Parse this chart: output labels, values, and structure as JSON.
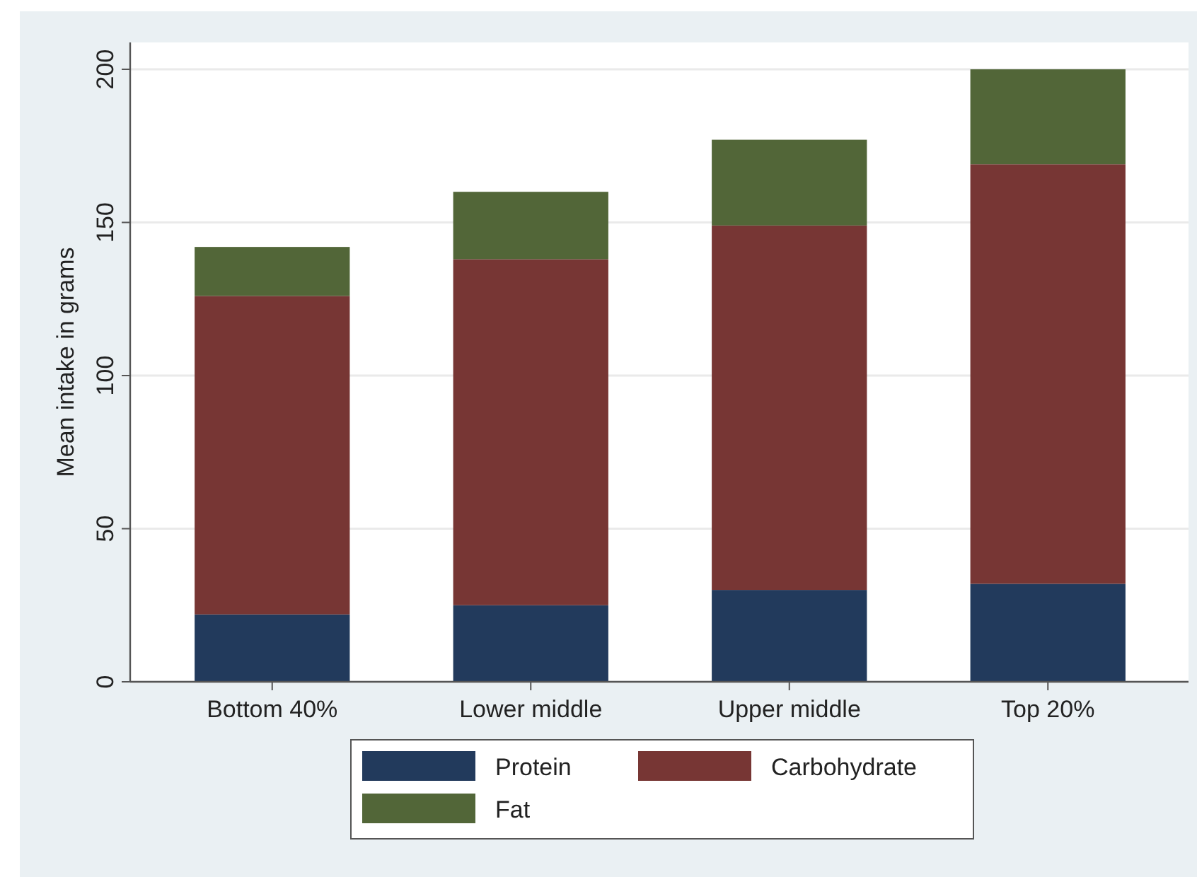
{
  "chart_data": {
    "type": "bar",
    "stacked": true,
    "ylabel": "Mean intake in grams",
    "categories": [
      "Bottom 40%",
      "Lower middle",
      "Upper middle",
      "Top 20%"
    ],
    "series": [
      {
        "name": "Protein",
        "color": "#223a5c",
        "values": [
          22,
          25,
          30,
          32
        ]
      },
      {
        "name": "Carbohydrate",
        "color": "#773634",
        "values": [
          104,
          113,
          119,
          137
        ]
      },
      {
        "name": "Fat",
        "color": "#526638",
        "values": [
          16,
          22,
          28,
          31
        ]
      }
    ],
    "ylim": [
      0,
      200
    ],
    "yticks": [
      0,
      50,
      100,
      150,
      200
    ],
    "grid": "y",
    "legend": "bottom"
  }
}
